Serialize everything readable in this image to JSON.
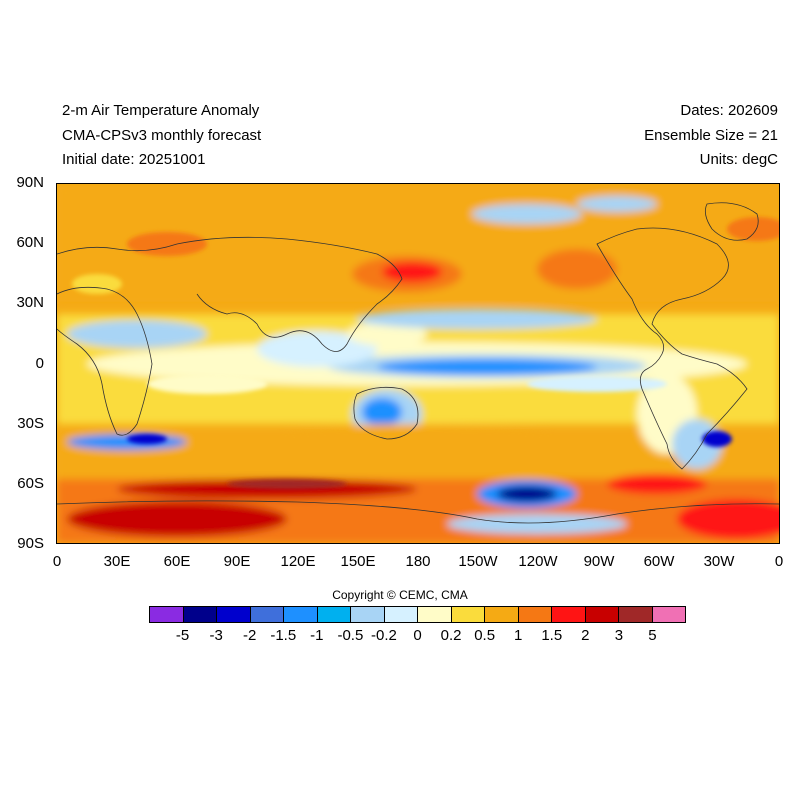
{
  "header": {
    "title": "2-m Air Temperature Anomaly",
    "model": "CMA-CPSv3 monthly forecast",
    "initial_date": "Initial date: 20251001",
    "dates": "Dates: 202609",
    "ensemble": "Ensemble Size = 21",
    "units": "Units: degC"
  },
  "axes": {
    "y_ticks": [
      "90N",
      "60N",
      "30N",
      "0",
      "30S",
      "60S",
      "90S"
    ],
    "x_ticks": [
      "0",
      "30E",
      "60E",
      "90E",
      "120E",
      "150E",
      "180",
      "150W",
      "120W",
      "90W",
      "60W",
      "30W",
      "0"
    ]
  },
  "copyright": "Copyright © CEMC, CMA",
  "colorbar": {
    "colors": [
      "#8a2be2",
      "#00008b",
      "#0000cd",
      "#3f6fdb",
      "#1e90ff",
      "#00b0ef",
      "#a8d4f5",
      "#d6f1ff",
      "#fffcc8",
      "#fadc3c",
      "#f5aa14",
      "#f57814",
      "#ff1414",
      "#c80000",
      "#a02828",
      "#f070b4"
    ],
    "labels": [
      "-5",
      "-3",
      "-2",
      "-1.5",
      "-1",
      "-0.5",
      "-0.2",
      "0",
      "0.2",
      "0.5",
      "1",
      "1.5",
      "2",
      "3",
      "5"
    ]
  },
  "chart_data": {
    "type": "heatmap",
    "title": "2-m Air Temperature Anomaly",
    "xlabel": "",
    "ylabel": "",
    "x_range": [
      "0",
      "0"
    ],
    "y_range": [
      "90S",
      "90N"
    ],
    "units": "degC",
    "levels": [
      -5,
      -3,
      -2,
      -1.5,
      -1,
      -0.5,
      -0.2,
      0,
      0.2,
      0.5,
      1,
      1.5,
      2,
      3,
      5
    ]
  }
}
